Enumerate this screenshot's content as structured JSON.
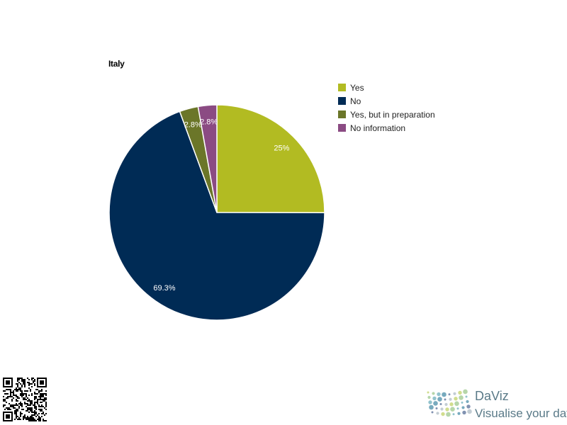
{
  "chart_data": {
    "type": "pie",
    "title": "Italy",
    "slices": [
      {
        "label": "Yes",
        "value": 25,
        "display": "25%",
        "color": "#b2bb22"
      },
      {
        "label": "No",
        "value": 69.3,
        "display": "69.3%",
        "color": "#002b55"
      },
      {
        "label": "Yes, but in preparation",
        "value": 2.8,
        "display": "2.8%",
        "color": "#6b7629"
      },
      {
        "label": "No information",
        "value": 2.8,
        "display": "2.8%",
        "color": "#8b4b83"
      }
    ],
    "legend_position": "right"
  },
  "branding": {
    "name": "DaViz",
    "tagline": "Visualise your data",
    "logo_icon": "daviz-dots-logo-icon",
    "qr_icon": "qr-code-icon"
  }
}
